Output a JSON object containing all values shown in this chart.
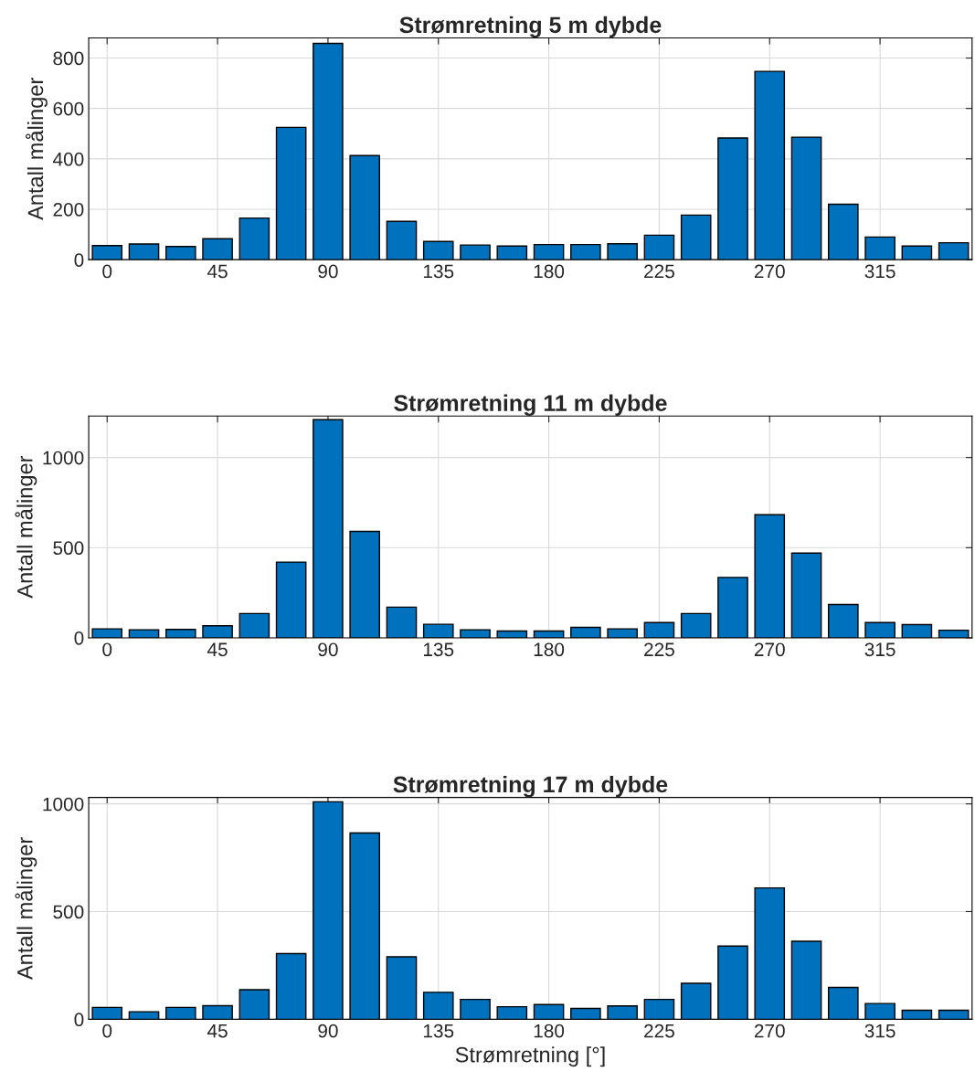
{
  "chart_data": [
    {
      "type": "bar",
      "title": "Strømretning 5 m dybde",
      "ylabel": "Antall målinger",
      "x": [
        0,
        15,
        30,
        45,
        60,
        75,
        90,
        105,
        120,
        135,
        150,
        165,
        180,
        195,
        210,
        225,
        240,
        255,
        270,
        285,
        300,
        315,
        330,
        345
      ],
      "series": [
        {
          "color": "#0072bd",
          "values": [
            56,
            62,
            52,
            83,
            165,
            525,
            858,
            413,
            152,
            72,
            58,
            54,
            60,
            60,
            63,
            97,
            177,
            483,
            747,
            486,
            220,
            90,
            54,
            67
          ]
        }
      ],
      "xlim": [
        -7.5,
        352.5
      ],
      "ylim": [
        0,
        880
      ],
      "xticks": [
        0,
        45,
        90,
        135,
        180,
        225,
        270,
        315
      ],
      "yticks": [
        0,
        200,
        400,
        600,
        800
      ],
      "grid": true,
      "legend": false
    },
    {
      "type": "bar",
      "title": "Strømretning 11 m dybde",
      "ylabel": "Antall målinger",
      "x": [
        0,
        15,
        30,
        45,
        60,
        75,
        90,
        105,
        120,
        135,
        150,
        165,
        180,
        195,
        210,
        225,
        240,
        255,
        270,
        285,
        300,
        315,
        330,
        345
      ],
      "series": [
        {
          "color": "#0072bd",
          "values": [
            50,
            45,
            47,
            67,
            135,
            420,
            1210,
            590,
            170,
            75,
            45,
            38,
            38,
            58,
            50,
            85,
            135,
            335,
            683,
            470,
            185,
            85,
            73,
            42
          ]
        }
      ],
      "xlim": [
        -7.5,
        352.5
      ],
      "ylim": [
        0,
        1230
      ],
      "xticks": [
        0,
        45,
        90,
        135,
        180,
        225,
        270,
        315
      ],
      "yticks": [
        0,
        500,
        1000
      ],
      "grid": true,
      "legend": false
    },
    {
      "type": "bar",
      "title": "Strømretning 17 m dybde",
      "ylabel": "Antall målinger",
      "xlabel": "Strømretning [°]",
      "x": [
        0,
        15,
        30,
        45,
        60,
        75,
        90,
        105,
        120,
        135,
        150,
        165,
        180,
        195,
        210,
        225,
        240,
        255,
        270,
        285,
        300,
        315,
        330,
        345
      ],
      "series": [
        {
          "color": "#0072bd",
          "values": [
            55,
            35,
            55,
            63,
            137,
            305,
            1010,
            865,
            290,
            125,
            92,
            58,
            68,
            50,
            62,
            92,
            167,
            340,
            610,
            362,
            148,
            73,
            42,
            42
          ]
        }
      ],
      "xlim": [
        -7.5,
        352.5
      ],
      "ylim": [
        0,
        1030
      ],
      "xticks": [
        0,
        45,
        90,
        135,
        180,
        225,
        270,
        315
      ],
      "yticks": [
        0,
        500,
        1000
      ],
      "grid": true,
      "legend": false
    }
  ]
}
